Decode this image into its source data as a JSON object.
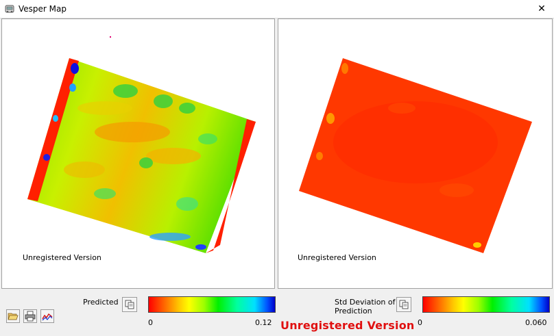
{
  "window": {
    "title": "Vesper Map",
    "close_glyph": "✕"
  },
  "left_panel": {
    "watermark": "Unregistered Version"
  },
  "right_panel": {
    "watermark": "Unregistered Version"
  },
  "legend_predicted": {
    "label": "Predicted",
    "min": "0",
    "max": "0.12",
    "colors": [
      "#ff0000",
      "#ffff00",
      "#00f000",
      "#00e0ff",
      "#0000c8"
    ]
  },
  "legend_std": {
    "label_line1": "Std Deviation of",
    "label_line2": "Prediction",
    "min": "0",
    "max": "0.060",
    "colors": [
      "#ff0000",
      "#ffff00",
      "#00f000",
      "#00e0ff",
      "#0000c8"
    ]
  },
  "toolbar": {
    "icons": [
      "open-folder-icon",
      "print-icon",
      "graph-icon"
    ]
  },
  "footer": {
    "unregistered": "Unregistered Version",
    "color": "#e01010"
  }
}
